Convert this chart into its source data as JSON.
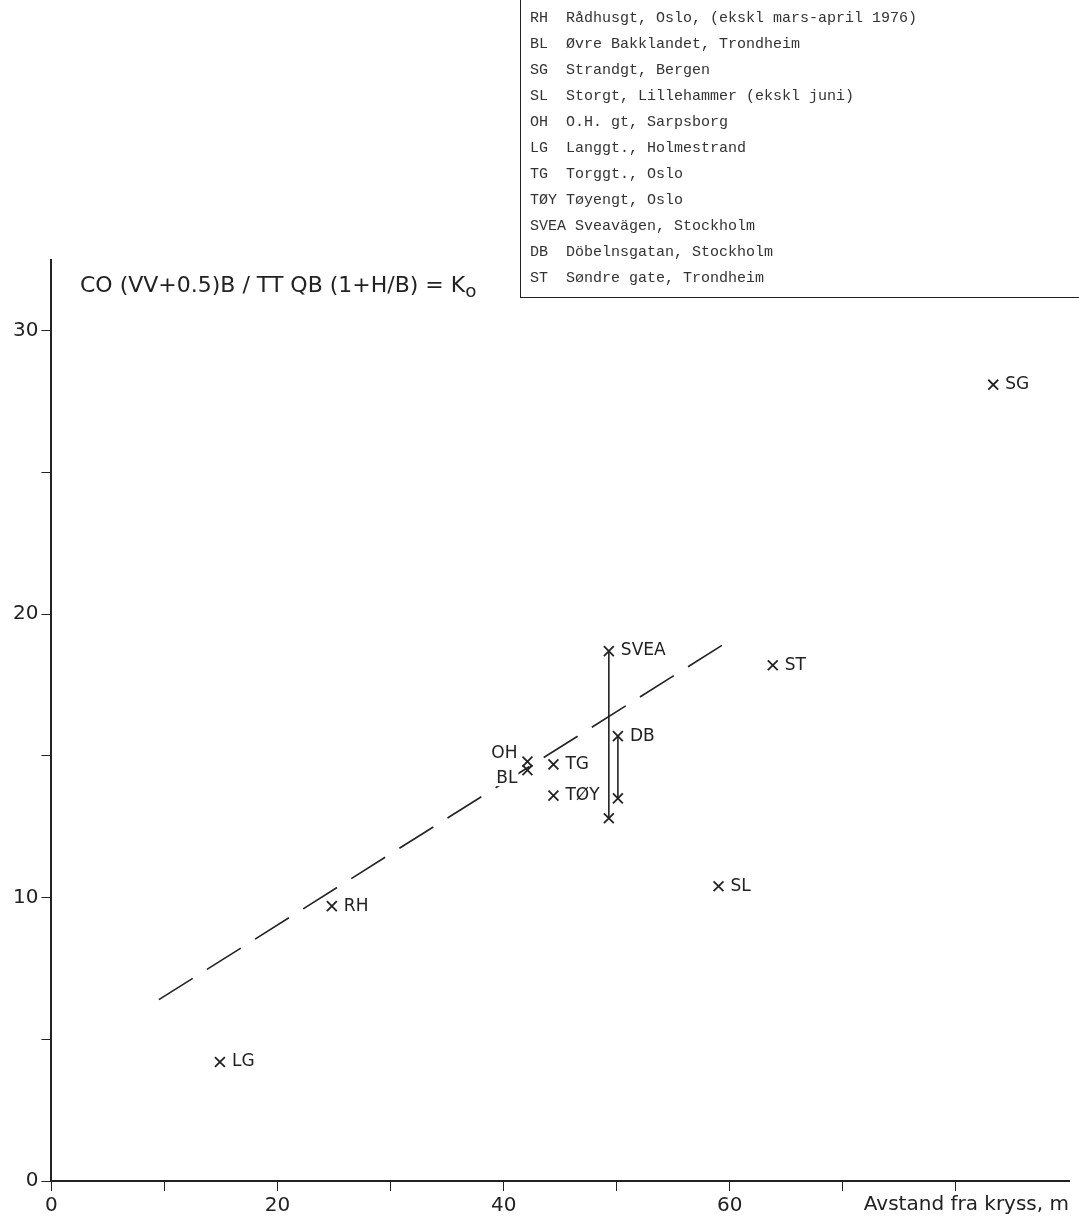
{
  "chart_data": {
    "type": "scatter",
    "ylabel": "CO (VV+0.5)B / TT QB (1+H/B) = K$_{o}$",
    "xlabel": "Avstand fra kryss, m",
    "xlim": [
      0,
      90
    ],
    "xticks": [
      0,
      {
        "value": 10,
        "label": null
      },
      20,
      {
        "value": 30,
        "label": null
      },
      40,
      {
        "value": 50,
        "label": null
      },
      60,
      {
        "value": 70,
        "label": null
      },
      {
        "value": 80,
        "label": null
      }
    ],
    "ylim": [
      0,
      32.5
    ],
    "yticks": [
      0,
      {
        "value": 5,
        "label": null
      },
      10,
      {
        "value": 15,
        "label": null
      },
      20,
      {
        "value": 25,
        "label": null
      },
      30
    ],
    "grid": false,
    "legend": false,
    "marker": "cross",
    "series": [
      {
        "color": "#222222",
        "x": [
          14.9,
          24.8,
          42.1,
          42.1,
          44.4,
          44.4,
          49.3,
          49.3,
          50.1,
          50.1,
          63.8,
          59,
          83.3
        ],
        "values": [
          4.2,
          9.7,
          14.8,
          14.5,
          14.7,
          13.6,
          18.7,
          12.8,
          15.7,
          13.5,
          18.2,
          10.4,
          28.1
        ],
        "value_labels": [
          "LG",
          "RH",
          "OH",
          "BL",
          "TG",
          "TØY",
          "SVEA",
          null,
          "DB",
          null,
          "ST",
          "SL",
          "SG"
        ]
      },
      {
        "type": "line",
        "color": "#222222",
        "marker": "none",
        "line_style": "solid",
        "x": [
          49.3,
          49.3
        ],
        "values": [
          18.7,
          12.8
        ]
      },
      {
        "type": "line",
        "color": "#222222",
        "marker": "none",
        "line_style": "solid",
        "x": [
          50.1,
          50.1
        ],
        "values": [
          15.7,
          13.5
        ]
      },
      {
        "type": "line",
        "color": "#222222",
        "marker": "none",
        "line_style": "dashed",
        "x": [
          9.5,
          59.3
        ],
        "values": [
          6.4,
          18.9
        ]
      }
    ],
    "annotations": [
      "RH  Rådhusgt, Oslo, (ekskl mars-april 1976)",
      "BL  Øvre Bakklandet, Trondheim",
      "SG  Strandgt, Bergen",
      "SL  Storgt, Lillehammer (ekskl juni)",
      "OH  O.H. gt, Sarpsborg",
      "LG  Langgt., Holmestrand",
      "TG  Torggt., Oslo",
      "TØY Tøyengt, Oslo",
      "SVEA Sveavägen, Stockholm",
      "DB  Döbelnsgatan, Stockholm",
      "ST  Søndre gate, Trondheim"
    ]
  }
}
